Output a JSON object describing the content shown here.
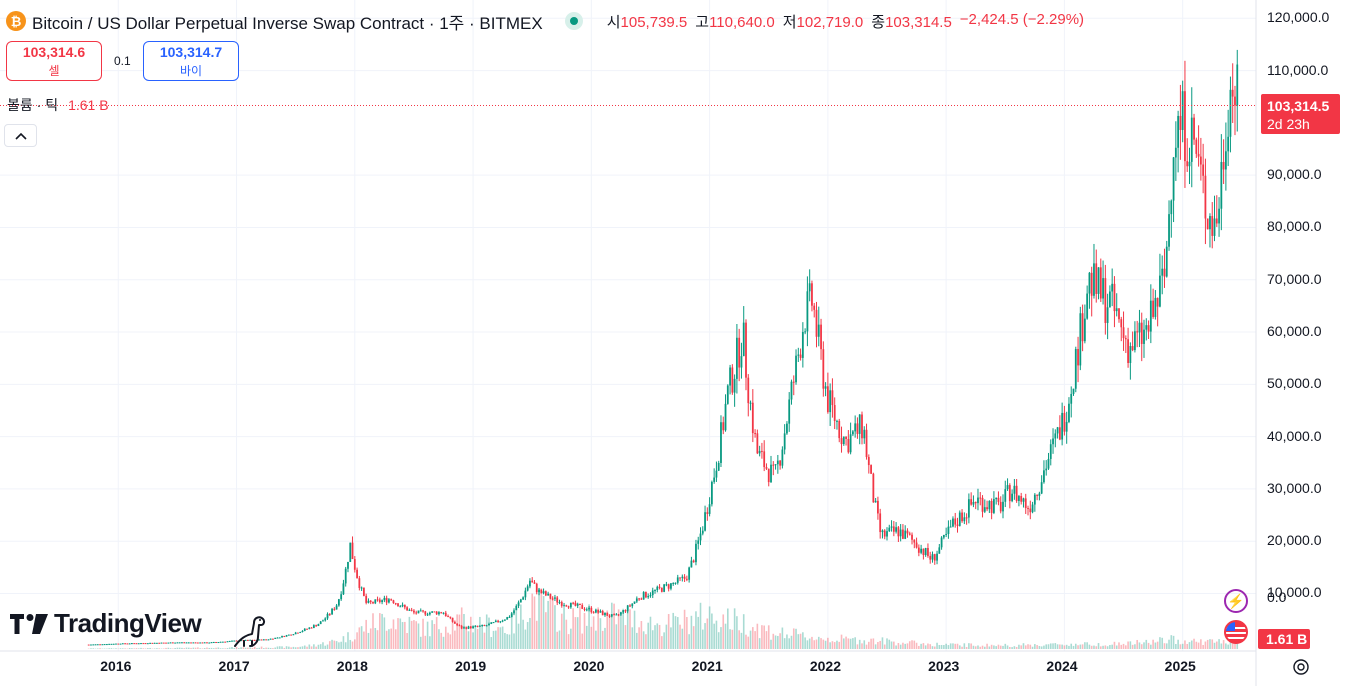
{
  "header": {
    "coin_icon": "bitcoin-icon",
    "title": "Bitcoin / US Dollar Perpetual Inverse Swap Contract · 1주 · BITMEX",
    "status": "market-open-dot",
    "ohlc": [
      {
        "label": "시",
        "value": "105,739.5"
      },
      {
        "label": "고",
        "value": "110,640.0"
      },
      {
        "label": "저",
        "value": "102,719.0"
      },
      {
        "label": "종",
        "value": "103,314.5"
      }
    ],
    "change": "−2,424.5 (−2.29%)"
  },
  "trade": {
    "sell_price": "103,314.6",
    "sell_label": "셀",
    "spread": "0.1",
    "buy_price": "103,314.7",
    "buy_label": "바이"
  },
  "volume_legend": {
    "label": "볼륨 · 틱",
    "value": "1.61 B"
  },
  "logo": {
    "text": "TradingView"
  },
  "right_axis": {
    "price_ticks": [
      "120,000.0",
      "110,000.0",
      "90,000.0",
      "80,000.0",
      "70,000.0",
      "60,000.0",
      "50,000.0",
      "40,000.0",
      "30,000.0",
      "20,000.0",
      "10,000.0"
    ],
    "volume_ticks": [
      "0.0",
      "0.0"
    ],
    "last_price": "103,314.5",
    "countdown": "2d 23h",
    "volume_last": "1.61 B"
  },
  "colors": {
    "up": "#089981",
    "down": "#f23645",
    "grid": "#f0f3fa"
  },
  "chart_data": {
    "type": "candlestick",
    "interval": "1주",
    "x_ticks": [
      "2016",
      "2017",
      "2018",
      "2019",
      "2020",
      "2021",
      "2022",
      "2023",
      "2024",
      "2025"
    ],
    "y_ticks": [
      10000,
      20000,
      30000,
      40000,
      50000,
      60000,
      70000,
      80000,
      90000,
      110000,
      120000
    ],
    "ylim": [
      -1000,
      123500
    ],
    "xlim": [
      2015.0,
      2025.62
    ],
    "last_price": 103314.5,
    "series": [
      {
        "name": "price",
        "anchors": [
          [
            2015.75,
            235
          ],
          [
            2016.0,
            430
          ],
          [
            2016.5,
            650
          ],
          [
            2016.75,
            610
          ],
          [
            2017.0,
            990
          ],
          [
            2017.25,
            1190
          ],
          [
            2017.5,
            2500
          ],
          [
            2017.7,
            4300
          ],
          [
            2017.85,
            8000
          ],
          [
            2017.96,
            19500
          ],
          [
            2018.05,
            11000
          ],
          [
            2018.1,
            8000
          ],
          [
            2018.3,
            9000
          ],
          [
            2018.5,
            6300
          ],
          [
            2018.75,
            6400
          ],
          [
            2018.9,
            3400
          ],
          [
            2019.1,
            3800
          ],
          [
            2019.3,
            5500
          ],
          [
            2019.48,
            12500
          ],
          [
            2019.55,
            10500
          ],
          [
            2019.75,
            8200
          ],
          [
            2019.95,
            7200
          ],
          [
            2020.2,
            5500
          ],
          [
            2020.4,
            9300
          ],
          [
            2020.6,
            11000
          ],
          [
            2020.8,
            13000
          ],
          [
            2021.0,
            29000
          ],
          [
            2021.15,
            48000
          ],
          [
            2021.28,
            60000
          ],
          [
            2021.4,
            37000
          ],
          [
            2021.55,
            32000
          ],
          [
            2021.68,
            47000
          ],
          [
            2021.8,
            63000
          ],
          [
            2021.87,
            66000
          ],
          [
            2022.0,
            47000
          ],
          [
            2022.15,
            39000
          ],
          [
            2022.3,
            42000
          ],
          [
            2022.45,
            21000
          ],
          [
            2022.6,
            22000
          ],
          [
            2022.75,
            19500
          ],
          [
            2022.88,
            16500
          ],
          [
            2023.05,
            23000
          ],
          [
            2023.25,
            28000
          ],
          [
            2023.45,
            26500
          ],
          [
            2023.55,
            30000
          ],
          [
            2023.7,
            26500
          ],
          [
            2023.85,
            35000
          ],
          [
            2024.0,
            44000
          ],
          [
            2024.15,
            62000
          ],
          [
            2024.2,
            70000
          ],
          [
            2024.4,
            65000
          ],
          [
            2024.55,
            57000
          ],
          [
            2024.7,
            60000
          ],
          [
            2024.85,
            71000
          ],
          [
            2024.92,
            98000
          ],
          [
            2025.0,
            100000
          ],
          [
            2025.1,
            96000
          ],
          [
            2025.2,
            84000
          ],
          [
            2025.28,
            80000
          ],
          [
            2025.38,
            104000
          ],
          [
            2025.42,
            108000
          ],
          [
            2025.47,
            103314
          ]
        ]
      },
      {
        "name": "volume",
        "anchors": [
          [
            2015.75,
            0.1
          ],
          [
            2017.5,
            0.4
          ],
          [
            2017.9,
            2.0
          ],
          [
            2018.1,
            4.5
          ],
          [
            2018.3,
            6.0
          ],
          [
            2018.6,
            4.0
          ],
          [
            2018.9,
            5.5
          ],
          [
            2019.3,
            4.0
          ],
          [
            2019.5,
            9.5
          ],
          [
            2019.8,
            5.5
          ],
          [
            2020.2,
            6.5
          ],
          [
            2020.6,
            4.5
          ],
          [
            2021.0,
            6.5
          ],
          [
            2021.3,
            5.0
          ],
          [
            2021.6,
            3.0
          ],
          [
            2022.0,
            2.0
          ],
          [
            2022.5,
            1.5
          ],
          [
            2023.0,
            0.8
          ],
          [
            2023.5,
            0.7
          ],
          [
            2024.0,
            0.9
          ],
          [
            2024.5,
            1.0
          ],
          [
            2024.9,
            1.8
          ],
          [
            2025.2,
            1.4
          ],
          [
            2025.47,
            1.61
          ]
        ]
      }
    ],
    "volume_unit": "B"
  }
}
